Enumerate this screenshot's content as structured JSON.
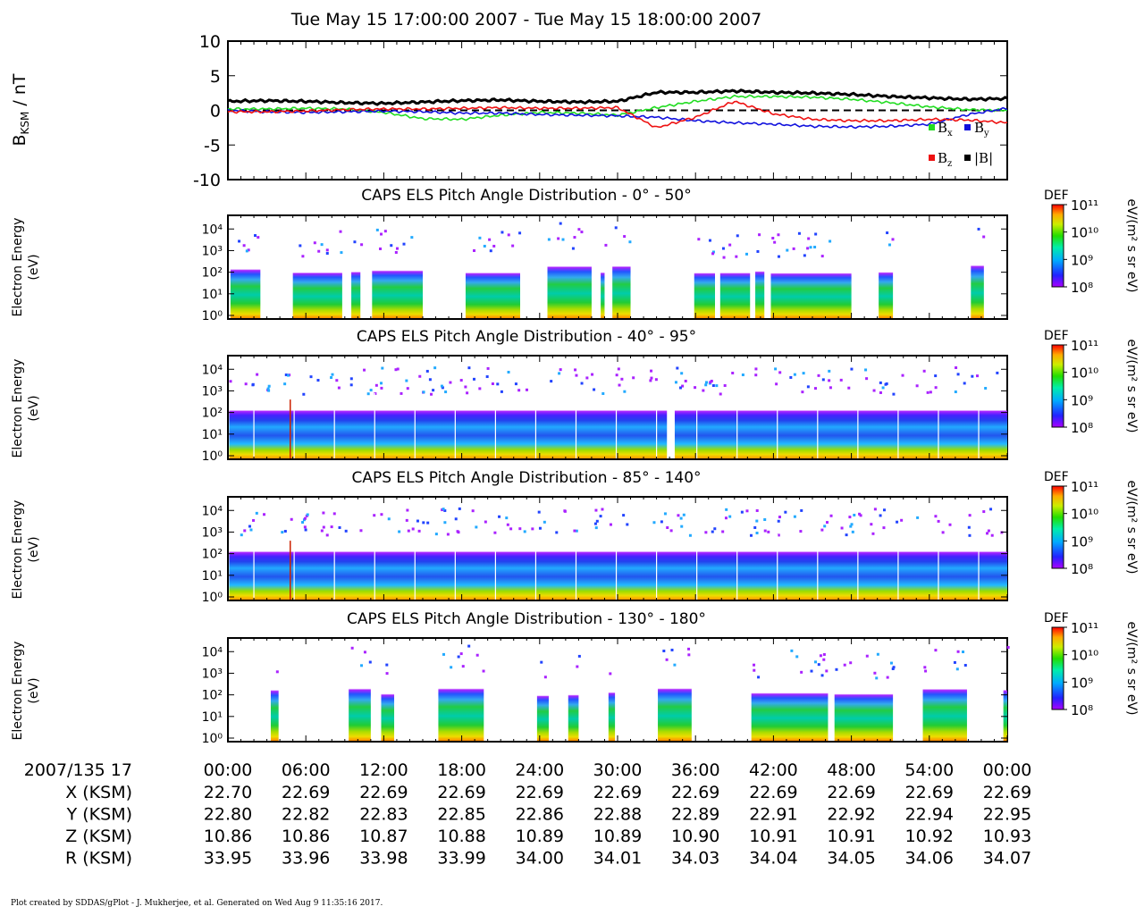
{
  "title": "Tue May 15 17:00:00 2007 - Tue May 15 18:00:00 2007",
  "footer": "Plot created by SDDAS/gPlot - J. Mukherjee, et al.  Generated on Wed Aug 9 11:35:16 2017.",
  "colors": {
    "bx": "#22dd22",
    "by": "#1010dd",
    "bz": "#ee1111",
    "bt": "#000000"
  },
  "chart_data": [
    {
      "type": "line",
      "ylabel": "B",
      "ylabel_sub": "KSM",
      "ylabel_unit": " / nT",
      "ylim": [
        -10,
        10
      ],
      "yticks": [
        "10",
        "5",
        "0",
        "-5",
        "-10"
      ],
      "x": [
        0,
        3,
        6,
        9,
        12,
        15,
        18,
        21,
        24,
        27,
        30,
        33,
        36,
        39,
        42,
        45,
        48,
        51,
        54,
        57,
        60
      ],
      "zero_line": "dashed",
      "series": [
        {
          "name": "B",
          "sub": "x",
          "values": [
            0.2,
            0.2,
            0.3,
            0.2,
            -0.3,
            -1.2,
            -1.3,
            -0.7,
            -0.3,
            -0.4,
            -0.7,
            0.4,
            1.3,
            2.0,
            2.0,
            1.9,
            1.6,
            1.1,
            0.5,
            0.1,
            0.0
          ]
        },
        {
          "name": "B",
          "sub": "y",
          "values": [
            0.0,
            -0.2,
            -0.3,
            -0.2,
            -0.1,
            -0.2,
            -0.4,
            -0.4,
            -0.6,
            -0.7,
            -0.8,
            -1.0,
            -1.5,
            -1.8,
            -2.0,
            -2.3,
            -2.4,
            -2.3,
            -2.0,
            -0.6,
            0.3
          ]
        },
        {
          "name": "B",
          "sub": "z",
          "values": [
            -0.2,
            -0.2,
            -0.1,
            0.1,
            0.2,
            0.2,
            0.3,
            0.4,
            0.3,
            0.3,
            0.4,
            -2.5,
            -1.0,
            1.3,
            -0.5,
            -1.3,
            -1.5,
            -1.5,
            -1.3,
            -1.4,
            -1.8
          ]
        },
        {
          "name": "|B|",
          "sub": "",
          "values": [
            1.3,
            1.4,
            1.3,
            1.1,
            1.0,
            1.2,
            1.4,
            1.5,
            1.3,
            1.2,
            1.3,
            2.6,
            2.6,
            2.8,
            2.6,
            2.5,
            2.3,
            2.0,
            1.8,
            1.6,
            1.7
          ]
        }
      ]
    },
    {
      "type": "heatmap",
      "title": "CAPS ELS Pitch Angle Distribution - 0° - 50°",
      "ylabel": "Electron Energy",
      "yunit": "(eV)",
      "yticks": [
        "10⁰",
        "10¹",
        "10²",
        "10³",
        "10⁴"
      ],
      "data_intervals_min": [
        [
          0.2,
          2.5
        ],
        [
          5.0,
          8.8
        ],
        [
          9.5,
          10.2
        ],
        [
          11.1,
          15.0
        ],
        [
          18.3,
          22.5
        ],
        [
          24.6,
          28.0
        ],
        [
          28.7,
          29.0
        ],
        [
          29.6,
          31.0
        ],
        [
          35.9,
          37.5
        ],
        [
          37.9,
          40.2
        ],
        [
          40.6,
          41.3
        ],
        [
          41.8,
          48.0
        ],
        [
          50.1,
          51.2
        ],
        [
          57.2,
          58.2
        ]
      ],
      "cbar_label": "DEF",
      "cbar_unit": "eV/(m² s sr eV)",
      "cbar_ticks": [
        "10¹¹",
        "10¹⁰",
        "10⁹",
        "10⁸"
      ]
    },
    {
      "type": "heatmap",
      "title": "CAPS ELS Pitch Angle Distribution - 40° - 95°",
      "ylabel": "Electron Energy",
      "yunit": "(eV)",
      "yticks": [
        "10⁰",
        "10¹",
        "10²",
        "10³",
        "10⁴"
      ],
      "data_intervals_min": [
        [
          0.1,
          33.8
        ],
        [
          34.4,
          60.0
        ]
      ],
      "cbar_label": "DEF",
      "cbar_unit": "eV/(m² s sr eV)",
      "cbar_ticks": [
        "10¹¹",
        "10¹⁰",
        "10⁹",
        "10⁸"
      ]
    },
    {
      "type": "heatmap",
      "title": "CAPS ELS Pitch Angle Distribution - 85° - 140°",
      "ylabel": "Electron Energy",
      "yunit": "(eV)",
      "yticks": [
        "10⁰",
        "10¹",
        "10²",
        "10³",
        "10⁴"
      ],
      "data_intervals_min": [
        [
          0.1,
          60.0
        ]
      ],
      "cbar_label": "DEF",
      "cbar_unit": "eV/(m² s sr eV)",
      "cbar_ticks": [
        "10¹¹",
        "10¹⁰",
        "10⁹",
        "10⁸"
      ]
    },
    {
      "type": "heatmap",
      "title": "CAPS ELS Pitch Angle Distribution - 130° - 180°",
      "ylabel": "Electron Energy",
      "yunit": "(eV)",
      "yticks": [
        "10⁰",
        "10¹",
        "10²",
        "10³",
        "10⁴"
      ],
      "data_intervals_min": [
        [
          3.3,
          3.9
        ],
        [
          9.3,
          11.0
        ],
        [
          11.8,
          12.8
        ],
        [
          16.2,
          19.7
        ],
        [
          23.8,
          24.7
        ],
        [
          26.2,
          27.0
        ],
        [
          29.3,
          29.8
        ],
        [
          33.1,
          35.7
        ],
        [
          40.3,
          46.2
        ],
        [
          46.7,
          51.2
        ],
        [
          53.5,
          56.9
        ],
        [
          59.7,
          60.0
        ]
      ],
      "cbar_label": "DEF",
      "cbar_unit": "eV/(m² s sr eV)",
      "cbar_ticks": [
        "10¹¹",
        "10¹⁰",
        "10⁹",
        "10⁸"
      ]
    }
  ],
  "ephemeris": {
    "time_label": "2007/135 17",
    "times": [
      "00:00",
      "06:00",
      "12:00",
      "18:00",
      "24:00",
      "30:00",
      "36:00",
      "42:00",
      "48:00",
      "54:00",
      "00:00"
    ],
    "rows": [
      {
        "label": "X (KSM)",
        "values": [
          "22.70",
          "22.69",
          "22.69",
          "22.69",
          "22.69",
          "22.69",
          "22.69",
          "22.69",
          "22.69",
          "22.69",
          "22.69"
        ]
      },
      {
        "label": "Y (KSM)",
        "values": [
          "22.80",
          "22.82",
          "22.83",
          "22.85",
          "22.86",
          "22.88",
          "22.89",
          "22.91",
          "22.92",
          "22.94",
          "22.95"
        ]
      },
      {
        "label": "Z (KSM)",
        "values": [
          "10.86",
          "10.86",
          "10.87",
          "10.88",
          "10.89",
          "10.89",
          "10.90",
          "10.91",
          "10.91",
          "10.92",
          "10.93"
        ]
      },
      {
        "label": "R (KSM)",
        "values": [
          "33.95",
          "33.96",
          "33.98",
          "33.99",
          "34.00",
          "34.01",
          "34.03",
          "34.04",
          "34.05",
          "34.06",
          "34.07"
        ]
      }
    ]
  }
}
